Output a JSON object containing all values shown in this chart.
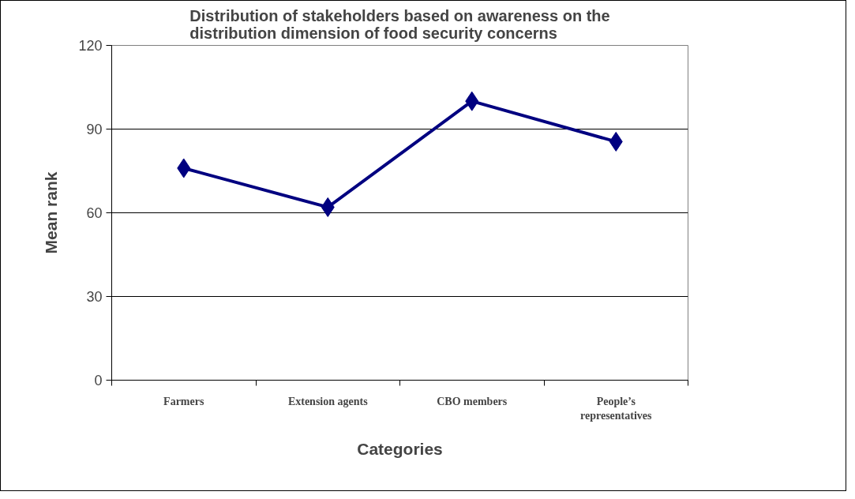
{
  "chart_data": {
    "type": "line",
    "title": "Distribution of stakeholders based on awareness on the distribution dimension of food security concerns",
    "xlabel": "Categories",
    "ylabel": "Mean rank",
    "categories": [
      "Farmers",
      "Extension agents",
      "CBO members",
      "People’s representatives"
    ],
    "series": [
      {
        "color": "#000080",
        "values": [
          76,
          62,
          100,
          85.5
        ]
      }
    ],
    "ylim": [
      0,
      120
    ],
    "yticks": [
      0,
      30,
      60,
      90,
      120
    ],
    "grid": "y",
    "marker": "diamond",
    "line_style": "solid"
  }
}
